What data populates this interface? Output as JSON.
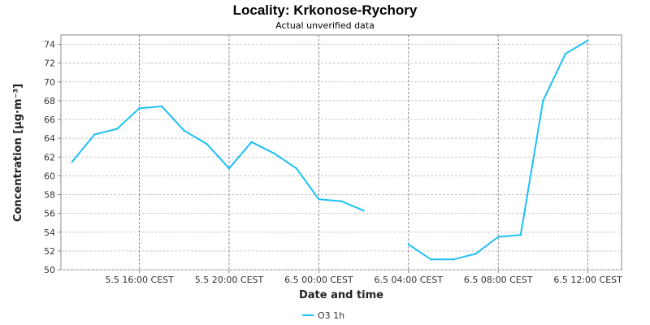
{
  "chart_data": {
    "type": "line",
    "title": "Locality: Krkonose-Rychory",
    "subtitle": "Actual unverified data",
    "xlabel": "Date and time",
    "ylabel": "Concentration [µg·m⁻³]",
    "ylim": [
      50,
      75
    ],
    "y_ticks": [
      50,
      52,
      54,
      56,
      58,
      60,
      62,
      64,
      66,
      68,
      70,
      72,
      74
    ],
    "x_ticks": [
      {
        "label": "5.5 16:00 CEST",
        "hour": 16
      },
      {
        "label": "5.5 20:00 CEST",
        "hour": 20
      },
      {
        "label": "6.5 00:00 CEST",
        "hour": 24
      },
      {
        "label": "6.5 04:00 CEST",
        "hour": 28
      },
      {
        "label": "6.5 08:00 CEST",
        "hour": 32
      },
      {
        "label": "6.5 12:00 CEST",
        "hour": 36
      }
    ],
    "x_range_hours": [
      12.5,
      37.5
    ],
    "grid": true,
    "legend_position": "bottom-center",
    "series": [
      {
        "name": "O3 1h",
        "color": "#1ec0f5",
        "points": [
          {
            "time": "5.5 13:00 CEST",
            "hour": 13,
            "value": 61.5
          },
          {
            "time": "5.5 14:00 CEST",
            "hour": 14,
            "value": 64.4
          },
          {
            "time": "5.5 15:00 CEST",
            "hour": 15,
            "value": 65.0
          },
          {
            "time": "5.5 16:00 CEST",
            "hour": 16,
            "value": 67.2
          },
          {
            "time": "5.5 17:00 CEST",
            "hour": 17,
            "value": 67.4
          },
          {
            "time": "5.5 18:00 CEST",
            "hour": 18,
            "value": 64.8
          },
          {
            "time": "5.5 19:00 CEST",
            "hour": 19,
            "value": 63.4
          },
          {
            "time": "5.5 20:00 CEST",
            "hour": 20,
            "value": 60.8
          },
          {
            "time": "5.5 21:00 CEST",
            "hour": 21,
            "value": 63.6
          },
          {
            "time": "5.5 22:00 CEST",
            "hour": 22,
            "value": 62.4
          },
          {
            "time": "5.5 23:00 CEST",
            "hour": 23,
            "value": 60.8
          },
          {
            "time": "6.5 00:00 CEST",
            "hour": 24,
            "value": 57.5
          },
          {
            "time": "6.5 01:00 CEST",
            "hour": 25,
            "value": 57.3
          },
          {
            "time": "6.5 02:00 CEST",
            "hour": 26,
            "value": 56.3
          },
          {
            "time": "6.5 03:00 CEST",
            "hour": 27,
            "value": null
          },
          {
            "time": "6.5 04:00 CEST",
            "hour": 28,
            "value": 52.7
          },
          {
            "time": "6.5 05:00 CEST",
            "hour": 29,
            "value": 51.1
          },
          {
            "time": "6.5 06:00 CEST",
            "hour": 30,
            "value": 51.1
          },
          {
            "time": "6.5 07:00 CEST",
            "hour": 31,
            "value": 51.7
          },
          {
            "time": "6.5 08:00 CEST",
            "hour": 32,
            "value": 53.5
          },
          {
            "time": "6.5 09:00 CEST",
            "hour": 33,
            "value": 53.7
          },
          {
            "time": "6.5 10:00 CEST",
            "hour": 34,
            "value": 68.0
          },
          {
            "time": "6.5 11:00 CEST",
            "hour": 35,
            "value": 73.0
          },
          {
            "time": "6.5 12:00 CEST",
            "hour": 36,
            "value": 74.4
          }
        ]
      }
    ]
  }
}
